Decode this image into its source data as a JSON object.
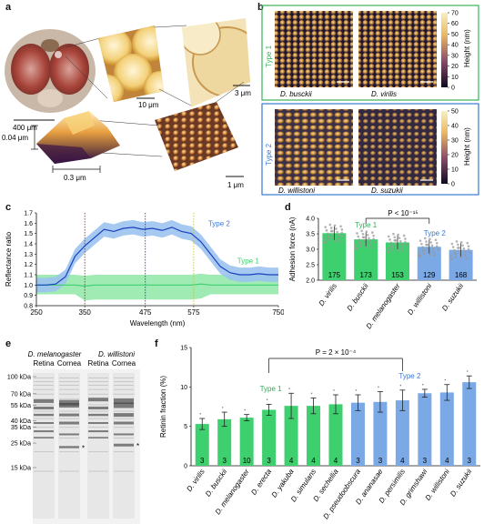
{
  "panels": {
    "a": "a",
    "b": "b",
    "c": "c",
    "d": "d",
    "e": "e",
    "f": "f"
  },
  "colors": {
    "type1": "#3ecf6e",
    "type2": "#3a78d6",
    "type1_fill": "#8fe6a6",
    "type2_fill": "#9cc3f0",
    "frame1": "#37b35a",
    "frame2": "#3a78d6"
  },
  "panel_a": {
    "scale_400": "400 μm",
    "scale_10": "10 μm",
    "scale_3": "3 μm",
    "height_label": "0.04 μm",
    "width_label": "0.3 μm",
    "scale_1": "1 μm"
  },
  "panel_b": {
    "type1_label": "Type 1",
    "type2_label": "Type 2",
    "species": [
      "D. busckii",
      "D. virilis",
      "D. willistoni",
      "D. suzukii"
    ],
    "colorbar1": {
      "ticks": [
        "70",
        "60",
        "50",
        "40",
        "30",
        "20",
        "10",
        "0"
      ],
      "label": "Height (nm)"
    },
    "colorbar2": {
      "ticks": [
        "50",
        "40",
        "30",
        "20",
        "10",
        "0"
      ],
      "label": "Height (nm)"
    }
  },
  "chart_data": [
    {
      "panel": "c",
      "type": "line",
      "xlabel": "Wavelength (nm)",
      "ylabel": "Reflectance ratio",
      "xlim": [
        250,
        750
      ],
      "ylim": [
        0.8,
        1.7
      ],
      "xticks": [
        "250",
        "350",
        "475",
        "575",
        "750"
      ],
      "yticks": [
        "0.8",
        "0.9",
        "1.0",
        "1.1",
        "1.2",
        "1.3",
        "1.4",
        "1.5",
        "1.6",
        "1.7"
      ],
      "vlines": [
        350,
        475,
        575
      ],
      "series": [
        {
          "name": "Type 2",
          "x": [
            250,
            270,
            290,
            310,
            330,
            350,
            370,
            390,
            410,
            430,
            450,
            470,
            490,
            510,
            530,
            550,
            570,
            590,
            610,
            630,
            650,
            670,
            690,
            710,
            730,
            750
          ],
          "y": [
            1.0,
            1.0,
            1.01,
            1.08,
            1.28,
            1.38,
            1.46,
            1.54,
            1.52,
            1.55,
            1.56,
            1.54,
            1.55,
            1.53,
            1.56,
            1.52,
            1.5,
            1.42,
            1.3,
            1.18,
            1.12,
            1.1,
            1.1,
            1.11,
            1.1,
            1.1
          ]
        },
        {
          "name": "Type 1",
          "x": [
            250,
            270,
            290,
            310,
            330,
            350,
            370,
            390,
            410,
            430,
            450,
            470,
            490,
            510,
            530,
            550,
            570,
            590,
            610,
            630,
            650,
            670,
            690,
            710,
            730,
            750
          ],
          "y": [
            1.0,
            1.0,
            1.0,
            1.0,
            1.0,
            0.99,
            1.0,
            1.0,
            1.0,
            1.0,
            1.0,
            1.0,
            1.0,
            1.0,
            1.0,
            1.0,
            1.0,
            1.01,
            1.0,
            1.0,
            1.0,
            1.0,
            1.0,
            1.0,
            1.0,
            1.0
          ]
        }
      ]
    },
    {
      "panel": "d",
      "type": "bar",
      "ylabel": "Adhesion force (nA)",
      "ylim": [
        2.0,
        4.0
      ],
      "yticks": [
        "2.0",
        "2.5",
        "3.0",
        "3.5",
        "4.0"
      ],
      "annotation": "P < 10⁻¹⁵",
      "categories": [
        "D. virilis",
        "D. busckii",
        "D. melanogaster",
        "D. willistoni",
        "D. suzukii"
      ],
      "values": [
        3.52,
        3.32,
        3.22,
        3.08,
        2.98
      ],
      "n": [
        "175",
        "173",
        "153",
        "129",
        "168"
      ],
      "group": [
        "Type 1",
        "Type 1",
        "Type 1",
        "Type 2",
        "Type 2"
      ],
      "type_labels": [
        "Type 1",
        "Type 2"
      ]
    },
    {
      "panel": "f",
      "type": "bar",
      "ylabel": "Retinin fraction (%)",
      "ylim": [
        0,
        15
      ],
      "yticks": [
        "0",
        "5",
        "10",
        "15"
      ],
      "annotation": "P = 2 × 10⁻⁴",
      "categories": [
        "D. virilis",
        "D. busckii",
        "D. melanogaster",
        "D. erecta",
        "D. yakuba",
        "D. simulans",
        "D. sechellia",
        "D. pseudoobscura",
        "D. ananasae",
        "D. persimilis",
        "D. grimshawi",
        "D. willistoni",
        "D. suzukii"
      ],
      "values": [
        5.3,
        5.9,
        6.1,
        7.1,
        7.6,
        7.6,
        7.8,
        8.0,
        8.1,
        8.3,
        9.2,
        9.3,
        10.6
      ],
      "errors": [
        0.7,
        0.9,
        0.4,
        0.7,
        1.6,
        1.0,
        1.2,
        1.0,
        1.3,
        1.3,
        0.5,
        1.0,
        0.8
      ],
      "n": [
        "3",
        "3",
        "10",
        "3",
        "4",
        "4",
        "4",
        "3",
        "3",
        "4",
        "3",
        "4",
        "3"
      ],
      "group": [
        "Type 1",
        "Type 1",
        "Type 1",
        "Type 1",
        "Type 1",
        "Type 1",
        "Type 1",
        "Type 2",
        "Type 2",
        "Type 2",
        "Type 2",
        "Type 2",
        "Type 2"
      ],
      "type_labels": [
        "Type 1",
        "Type 2"
      ]
    }
  ],
  "panel_e": {
    "header_left": "D. melanogaster",
    "header_right": "D. willistoni",
    "lanes": [
      "Retina",
      "Cornea",
      "Retina",
      "Cornea"
    ],
    "markers": [
      "100 kDa",
      "70 kDa",
      "55 kDa",
      "40 kDa",
      "35 kDa",
      "25 kDa",
      "15 kDa"
    ],
    "marker_kda": [
      100,
      70,
      55,
      40,
      35,
      25,
      15
    ],
    "star": "*"
  }
}
